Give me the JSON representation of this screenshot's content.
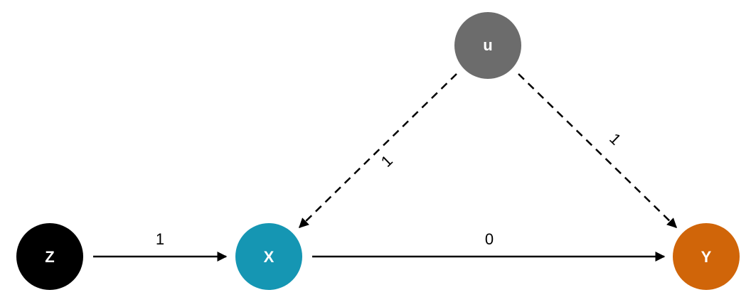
{
  "nodes": {
    "z": {
      "label": "Z",
      "color": "#000000"
    },
    "x": {
      "label": "X",
      "color": "#1596b3"
    },
    "y": {
      "label": "Y",
      "color": "#d06509"
    },
    "u": {
      "label": "u",
      "color": "#6c6c6c"
    }
  },
  "edges": {
    "z_x": {
      "label": "1",
      "style": "solid"
    },
    "x_y": {
      "label": "0",
      "style": "solid"
    },
    "u_x": {
      "label": "1",
      "style": "dashed"
    },
    "u_y": {
      "label": "1",
      "style": "dashed"
    }
  }
}
